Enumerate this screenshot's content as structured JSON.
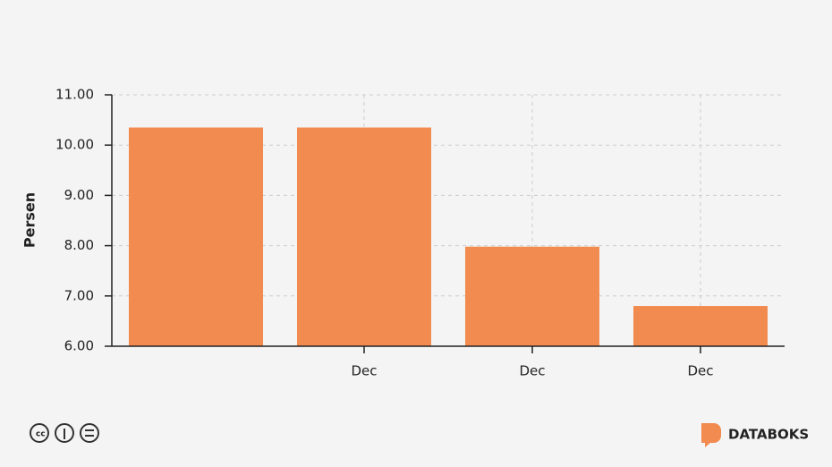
{
  "chart_data": {
    "type": "bar",
    "y_label": "Persen",
    "categories": [
      null,
      "Dec",
      "Dec",
      "Dec"
    ],
    "values": [
      10.35,
      10.35,
      7.98,
      6.8
    ],
    "color": "#f28b50",
    "ylim": [
      6,
      11
    ],
    "yticks": [
      {
        "value": 6,
        "label": "6.00"
      },
      {
        "value": 7,
        "label": "7.00"
      },
      {
        "value": 8,
        "label": "8.00"
      },
      {
        "value": 9,
        "label": "9.00"
      },
      {
        "value": 10,
        "label": "10.00"
      },
      {
        "value": 11,
        "label": "11.00"
      }
    ],
    "grid": true
  },
  "brand": "DATABOKS"
}
